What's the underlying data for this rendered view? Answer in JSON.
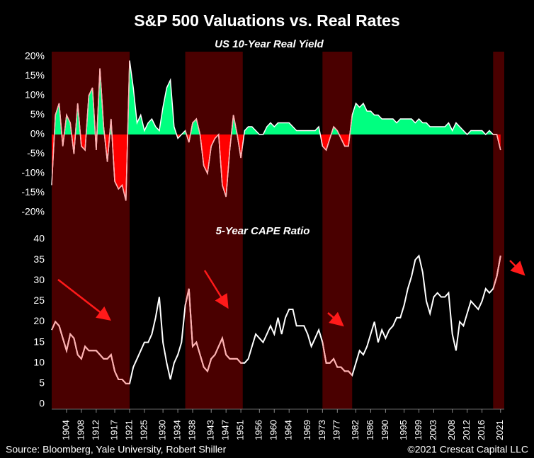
{
  "title": "S&P 500 Valuations vs. Real Rates",
  "source": "Source: Bloomberg, Yale University, Robert Shiller",
  "copyright": "©2021 Crescat Capital LLC",
  "shaded_periods": [
    [
      1900,
      1921
    ],
    [
      1936,
      1951.5
    ],
    [
      1973,
      1981
    ],
    [
      2019,
      2022
    ]
  ],
  "shade_color": "#4a0000",
  "chart_data": [
    {
      "type": "area",
      "title": "US 10-Year Real Yield",
      "x": [
        1900,
        1901,
        1902,
        1903,
        1904,
        1905,
        1906,
        1907,
        1908,
        1909,
        1910,
        1911,
        1912,
        1913,
        1914,
        1915,
        1916,
        1917,
        1918,
        1919,
        1920,
        1921,
        1922,
        1923,
        1924,
        1925,
        1926,
        1927,
        1928,
        1929,
        1930,
        1931,
        1932,
        1933,
        1934,
        1935,
        1936,
        1937,
        1938,
        1939,
        1940,
        1941,
        1942,
        1943,
        1944,
        1945,
        1946,
        1947,
        1948,
        1949,
        1950,
        1951,
        1952,
        1953,
        1954,
        1955,
        1956,
        1957,
        1958,
        1959,
        1960,
        1961,
        1962,
        1963,
        1964,
        1965,
        1966,
        1967,
        1968,
        1969,
        1970,
        1971,
        1972,
        1973,
        1974,
        1975,
        1976,
        1977,
        1978,
        1979,
        1980,
        1981,
        1982,
        1983,
        1984,
        1985,
        1986,
        1987,
        1988,
        1989,
        1990,
        1991,
        1992,
        1993,
        1994,
        1995,
        1996,
        1997,
        1998,
        1999,
        2000,
        2001,
        2002,
        2003,
        2004,
        2005,
        2006,
        2007,
        2008,
        2009,
        2010,
        2011,
        2012,
        2013,
        2014,
        2015,
        2016,
        2017,
        2018,
        2019,
        2020,
        2021
      ],
      "values": [
        -13,
        5,
        8,
        -3,
        5,
        3,
        -5,
        8,
        -3,
        -4,
        10,
        12,
        -4,
        17,
        2,
        -7,
        4,
        -12,
        -14,
        -13,
        -17,
        19,
        12,
        3,
        5,
        1,
        3,
        4,
        2,
        1,
        7,
        12,
        14,
        2,
        -1,
        0,
        1,
        -2,
        3,
        4,
        0,
        -8,
        -10,
        -3,
        -1,
        0,
        -13,
        -16,
        -4,
        5,
        0,
        -6,
        1,
        2,
        2,
        1,
        0,
        0,
        2,
        3,
        2,
        3,
        3,
        3,
        3,
        2,
        1,
        1,
        1,
        1,
        1,
        1,
        2,
        -3,
        -4,
        -1,
        2,
        1,
        -1,
        -3,
        -3,
        5,
        8,
        7,
        8,
        6,
        6,
        5,
        5,
        4,
        4,
        4,
        4,
        3,
        4,
        4,
        4,
        4,
        3,
        4,
        3,
        3,
        2,
        2,
        2,
        2,
        2,
        3,
        1,
        3,
        2,
        1,
        0,
        1,
        1,
        1,
        1,
        0,
        1,
        0,
        0,
        -4
      ],
      "positive_color": "#00ff80",
      "negative_color": "#ff0000",
      "line_color": "#ffffff",
      "shaded_line_color": "#ffb0b0",
      "xlim": [
        1900,
        2022
      ],
      "ylim": [
        -20,
        20
      ],
      "yticks": [
        {
          "value": 20,
          "label": "20%"
        },
        {
          "value": 15,
          "label": "15%"
        },
        {
          "value": 10,
          "label": "10%"
        },
        {
          "value": 5,
          "label": "5%"
        },
        {
          "value": 0,
          "label": "0%"
        },
        {
          "value": -5,
          "label": "-5%"
        },
        {
          "value": -10,
          "label": "-10%"
        },
        {
          "value": -15,
          "label": "-15%"
        },
        {
          "value": -20,
          "label": "-20%"
        }
      ]
    },
    {
      "type": "line",
      "title": "5-Year CAPE Ratio",
      "x": [
        1900,
        1901,
        1902,
        1903,
        1904,
        1905,
        1906,
        1907,
        1908,
        1909,
        1910,
        1911,
        1912,
        1913,
        1914,
        1915,
        1916,
        1917,
        1918,
        1919,
        1920,
        1921,
        1922,
        1923,
        1924,
        1925,
        1926,
        1927,
        1928,
        1929,
        1930,
        1931,
        1932,
        1933,
        1934,
        1935,
        1936,
        1937,
        1938,
        1939,
        1940,
        1941,
        1942,
        1943,
        1944,
        1945,
        1946,
        1947,
        1948,
        1949,
        1950,
        1951,
        1952,
        1953,
        1954,
        1955,
        1956,
        1957,
        1958,
        1959,
        1960,
        1961,
        1962,
        1963,
        1964,
        1965,
        1966,
        1967,
        1968,
        1969,
        1970,
        1971,
        1972,
        1973,
        1974,
        1975,
        1976,
        1977,
        1978,
        1979,
        1980,
        1981,
        1982,
        1983,
        1984,
        1985,
        1986,
        1987,
        1988,
        1989,
        1990,
        1991,
        1992,
        1993,
        1994,
        1995,
        1996,
        1997,
        1998,
        1999,
        2000,
        2001,
        2002,
        2003,
        2004,
        2005,
        2006,
        2007,
        2008,
        2009,
        2010,
        2011,
        2012,
        2013,
        2014,
        2015,
        2016,
        2017,
        2018,
        2019,
        2020,
        2021
      ],
      "values": [
        18,
        20,
        19,
        16,
        13,
        17,
        16,
        12,
        11,
        14,
        13,
        13,
        13,
        12,
        11,
        11,
        12,
        8,
        6,
        6,
        5,
        5,
        9,
        11,
        13,
        15,
        15,
        17,
        21,
        26,
        15,
        10,
        6,
        10,
        12,
        15,
        24,
        28,
        14,
        15,
        12,
        9,
        8,
        11,
        12,
        14,
        16,
        12,
        11,
        11,
        11,
        10,
        10,
        11,
        14,
        17,
        16,
        15,
        17,
        19,
        17,
        21,
        17,
        21,
        23,
        23,
        19,
        19,
        19,
        17,
        14,
        16,
        18,
        15,
        10,
        10,
        11,
        9,
        9,
        8,
        8,
        7,
        10,
        13,
        12,
        14,
        17,
        20,
        15,
        18,
        16,
        18,
        19,
        21,
        21,
        24,
        28,
        31,
        35,
        36,
        32,
        25,
        22,
        26,
        27,
        26,
        26,
        27,
        17,
        13,
        20,
        19,
        22,
        25,
        24,
        23,
        25,
        28,
        27,
        28,
        31,
        36
      ],
      "color": "#ffffff",
      "shaded_color": "#ffb0b0",
      "xlim": [
        1900,
        2022
      ],
      "ylim": [
        0,
        40
      ],
      "yticks": [
        40,
        35,
        30,
        25,
        20,
        15,
        10,
        5,
        0
      ],
      "xticks": [
        1904,
        1908,
        1912,
        1917,
        1921,
        1925,
        1930,
        1934,
        1938,
        1943,
        1947,
        1951,
        1956,
        1960,
        1964,
        1969,
        1973,
        1977,
        1982,
        1986,
        1990,
        1995,
        1999,
        2003,
        2008,
        2012,
        2016,
        2021
      ]
    }
  ]
}
